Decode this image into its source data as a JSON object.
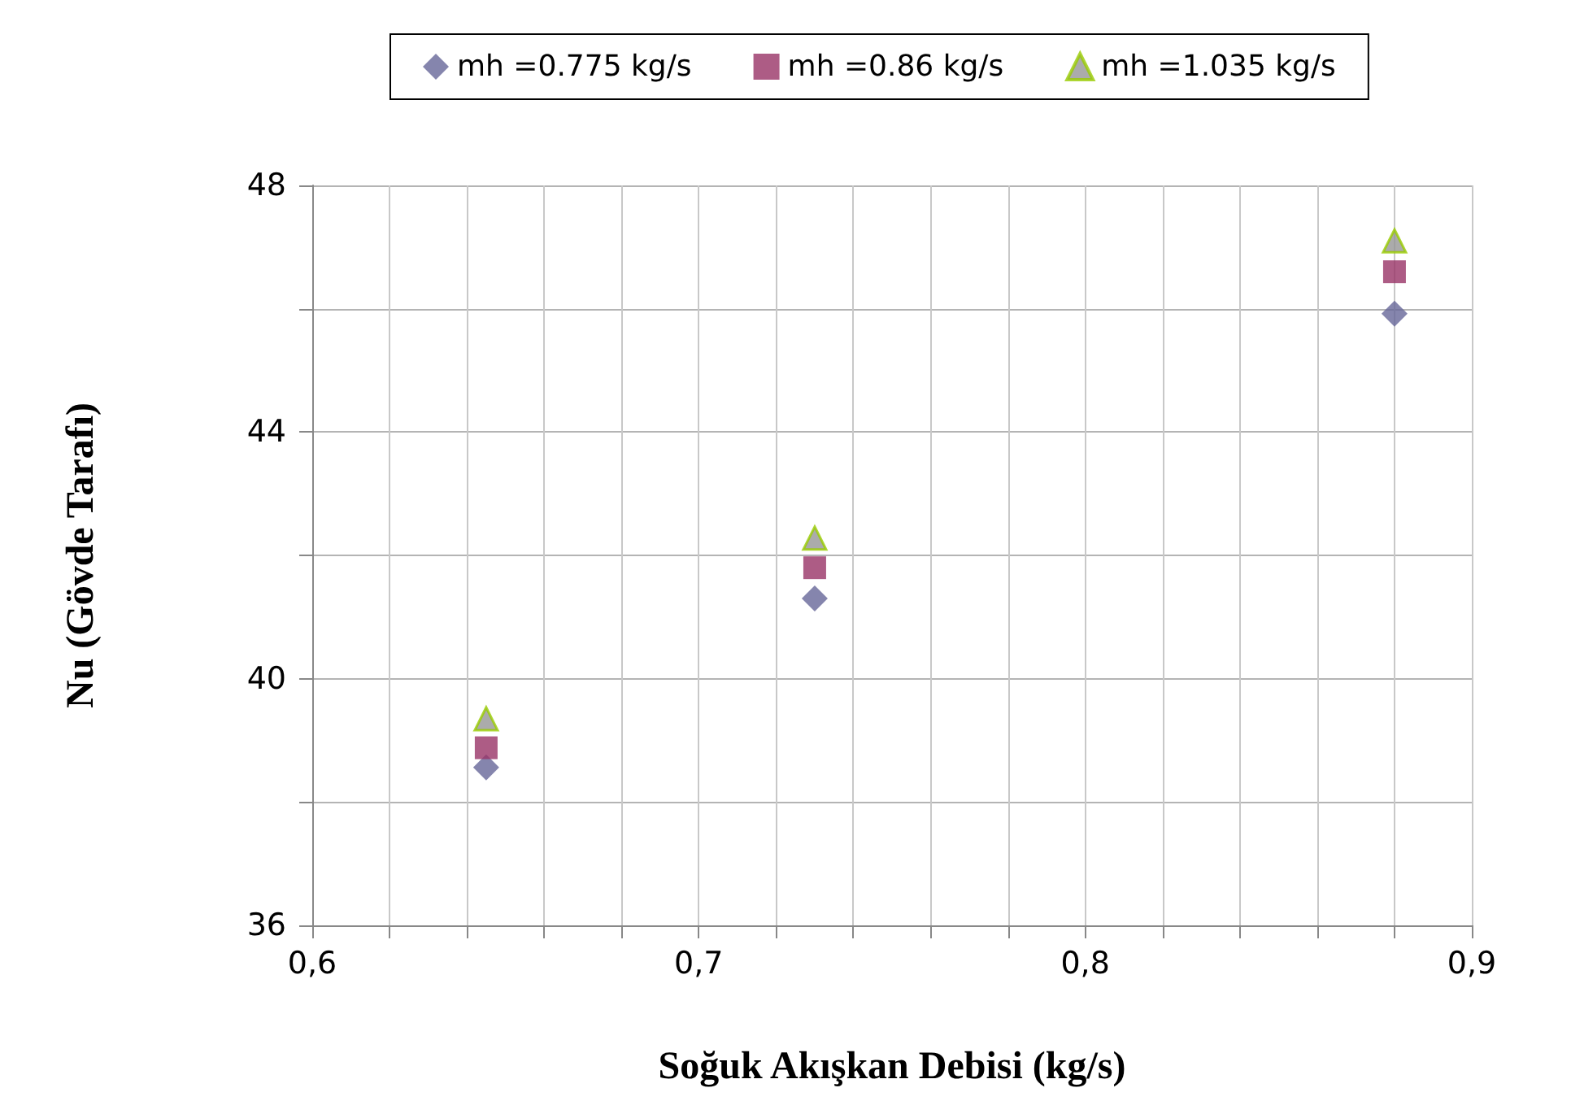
{
  "chart_data": {
    "type": "scatter",
    "xlabel": "Soğuk Akışkan Debisi (kg/s)",
    "ylabel": "Nu (Gövde Tarafı)",
    "x": [
      0.645,
      0.73,
      0.88
    ],
    "series": [
      {
        "name": "mh =0.775 kg/s",
        "color": "#666699",
        "marker": "diamond",
        "values": [
          38.56,
          41.3,
          45.92
        ]
      },
      {
        "name": "mh =0.86 kg/s",
        "color": "#993366",
        "marker": "square",
        "values": [
          38.88,
          41.8,
          46.6
        ]
      },
      {
        "name": "mh =1.035 kg/s",
        "color": "#969696",
        "marker": "triangle",
        "values": [
          39.35,
          42.28,
          47.1
        ]
      }
    ],
    "xlim": [
      0.6,
      0.9
    ],
    "xticks": [
      {
        "value": 0.6,
        "label": "0,6"
      },
      {
        "value": 0.62,
        "label": null
      },
      {
        "value": 0.64,
        "label": null
      },
      {
        "value": 0.66,
        "label": null
      },
      {
        "value": 0.68,
        "label": null
      },
      {
        "value": 0.7,
        "label": "0,7"
      },
      {
        "value": 0.72,
        "label": null
      },
      {
        "value": 0.74,
        "label": null
      },
      {
        "value": 0.76,
        "label": null
      },
      {
        "value": 0.78,
        "label": null
      },
      {
        "value": 0.8,
        "label": "0,8"
      },
      {
        "value": 0.82,
        "label": null
      },
      {
        "value": 0.84,
        "label": null
      },
      {
        "value": 0.86,
        "label": null
      },
      {
        "value": 0.88,
        "label": null
      },
      {
        "value": 0.9,
        "label": "0,9"
      }
    ],
    "ylim": [
      36,
      48
    ],
    "yticks": [
      36,
      {
        "value": 38,
        "label": null
      },
      40,
      {
        "value": 42,
        "label": null
      },
      44,
      {
        "value": 46,
        "label": null
      },
      48
    ],
    "grid": true,
    "legend": "top"
  }
}
